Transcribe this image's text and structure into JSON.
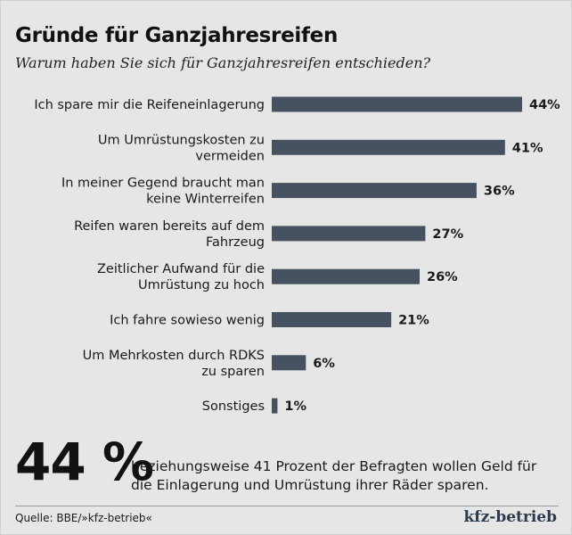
{
  "title": "Gründe für Ganzjahresreifen",
  "subtitle": "Warum haben Sie sich für Ganzjahresreifen entschieden?",
  "chart_data": {
    "type": "bar",
    "orientation": "horizontal",
    "title": "Gründe für Ganzjahresreifen",
    "subtitle": "Warum haben Sie sich für Ganzjahresreifen entschieden?",
    "unit": "%",
    "bar_color": "#475260",
    "categories": [
      [
        "Ich spare mir die Reifeneinlagerung"
      ],
      [
        "Um Umrüstungskosten zu",
        "vermeiden"
      ],
      [
        "In meiner Gegend braucht man",
        "keine Winterreifen"
      ],
      [
        "Reifen waren bereits auf dem",
        "Fahrzeug"
      ],
      [
        "Zeitlicher Aufwand für die",
        "Umrüstung zu hoch"
      ],
      [
        "Ich fahre sowieso wenig"
      ],
      [
        "Um Mehrkosten durch RDKS",
        "zu sparen"
      ],
      [
        "Sonstiges"
      ]
    ],
    "values": [
      44,
      41,
      36,
      27,
      26,
      21,
      6,
      1
    ],
    "value_labels": [
      "44%",
      "41%",
      "36%",
      "27%",
      "26%",
      "21%",
      "6%",
      "1%"
    ],
    "xlim": [
      0,
      44
    ],
    "grid": false,
    "legend": "none"
  },
  "highlight": {
    "number": "44 %",
    "text": "beziehungsweise 41 Prozent der Befragten wollen Geld für die Einlagerung und Umrüstung ihrer Räder sparen."
  },
  "footer": {
    "source": "Quelle: BBE/»kfz-betrieb«",
    "logo": "kfz-betrieb"
  }
}
